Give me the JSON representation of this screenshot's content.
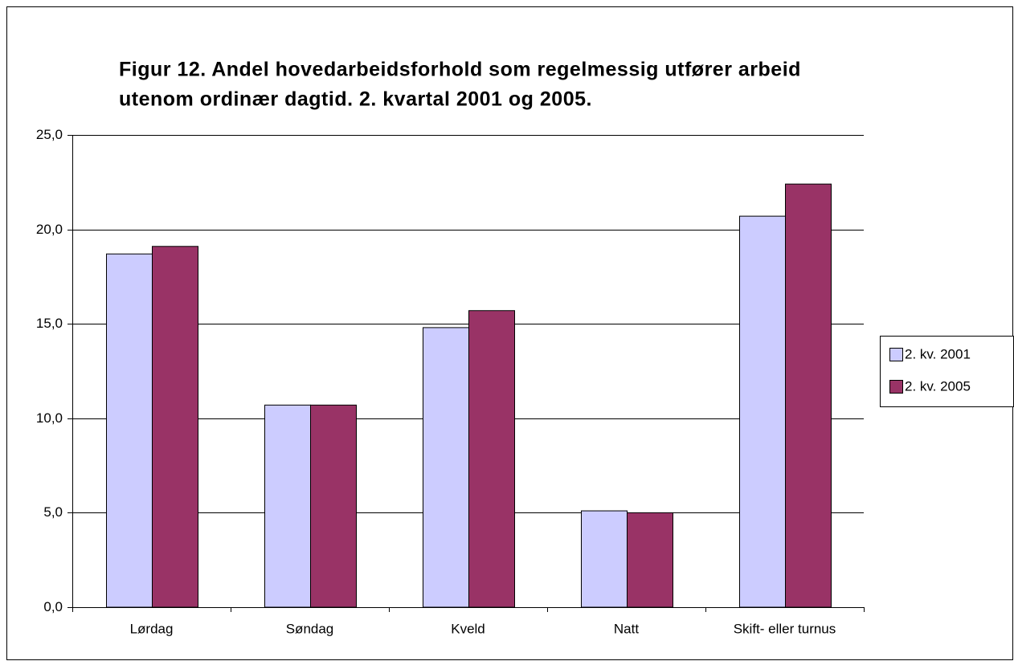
{
  "chart_data": {
    "type": "bar",
    "title": [
      "Figur 12. Andel hovedarbeidsforhold som regelmessig utfører arbeid",
      "utenom ordinær dagtid. 2. kvartal 2001 og 2005."
    ],
    "categories": [
      "Lørdag",
      "Søndag",
      "Kveld",
      "Natt",
      "Skift- eller turnus"
    ],
    "series": [
      {
        "name": "2. kv. 2001",
        "color": "#ccccff",
        "values": [
          18.7,
          10.7,
          14.8,
          5.1,
          20.7
        ]
      },
      {
        "name": "2. kv. 2005",
        "color": "#993366",
        "values": [
          19.1,
          10.7,
          15.7,
          5.0,
          22.4
        ]
      }
    ],
    "ylim": [
      0,
      25
    ],
    "yticks": [
      {
        "value": 0,
        "label": "0,0"
      },
      {
        "value": 5,
        "label": "5,0"
      },
      {
        "value": 10,
        "label": "10,0"
      },
      {
        "value": 15,
        "label": "15,0"
      },
      {
        "value": 20,
        "label": "20,0"
      },
      {
        "value": 25,
        "label": "25,0"
      }
    ],
    "grid": true,
    "legend": "right"
  }
}
